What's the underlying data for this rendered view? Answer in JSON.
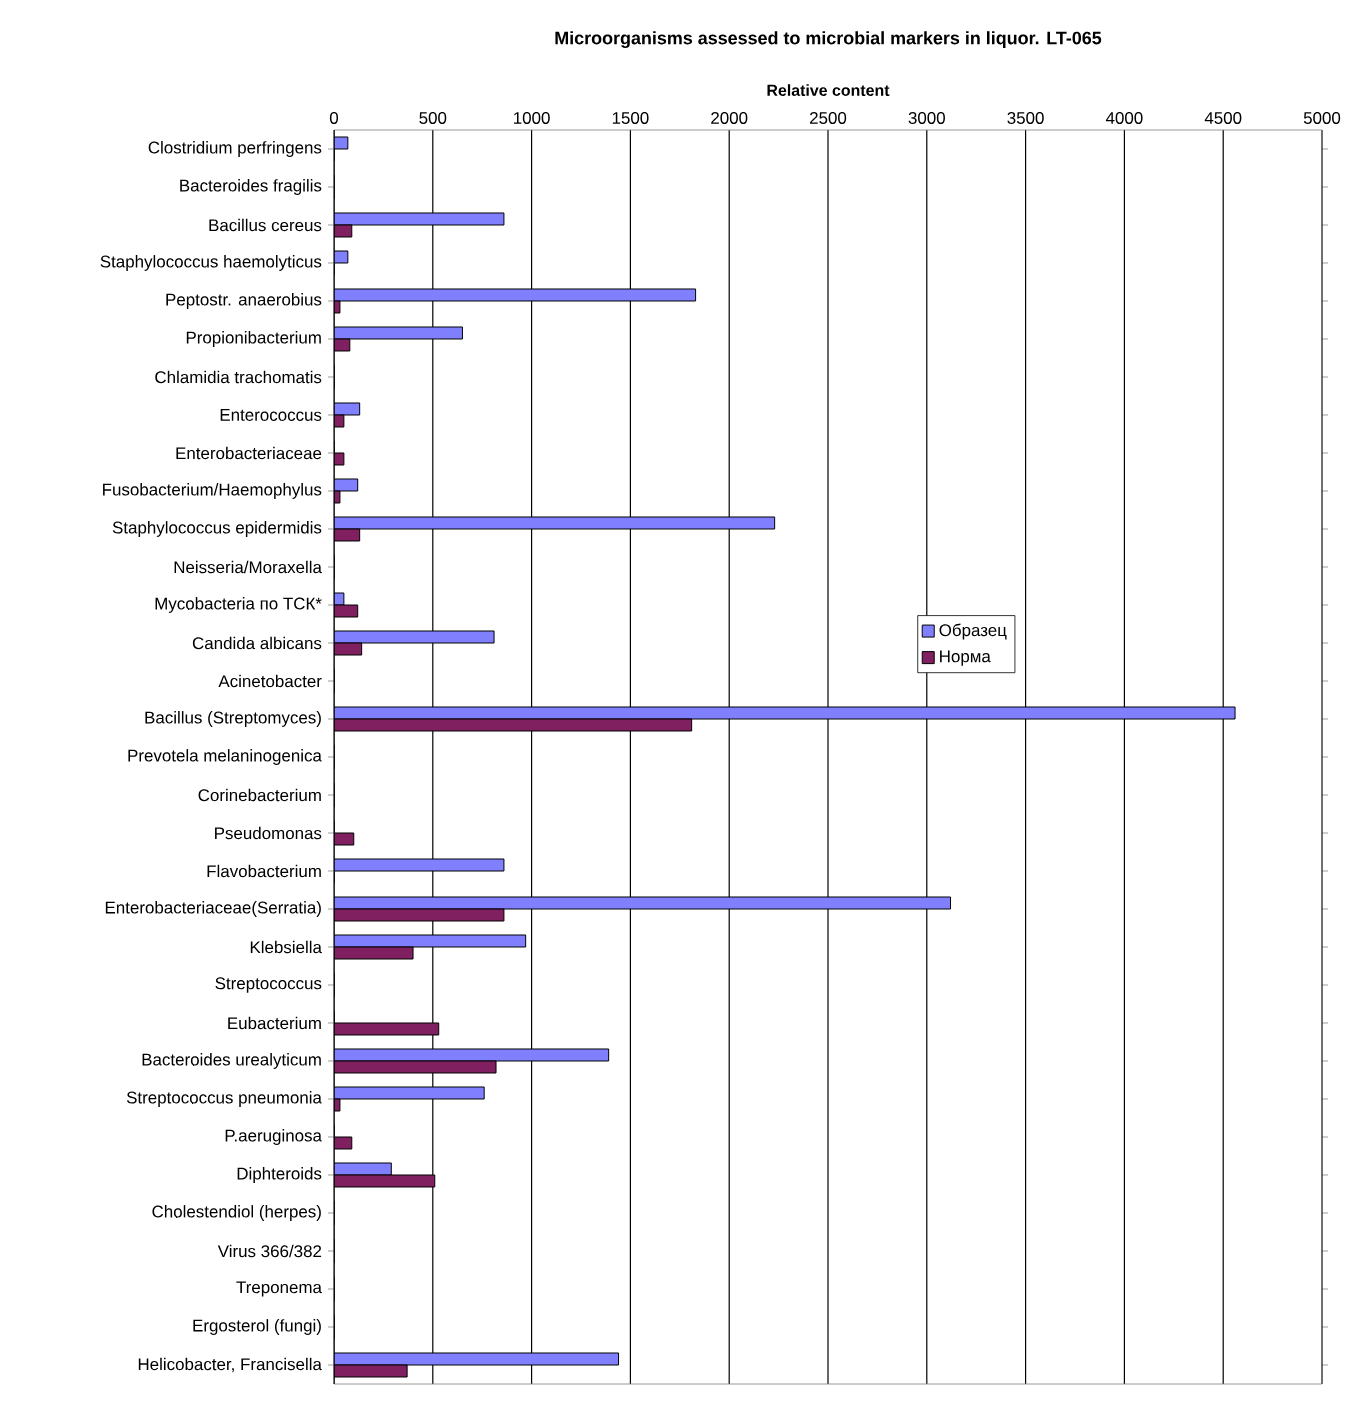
{
  "chart_data": {
    "type": "bar",
    "orientation": "horizontal",
    "title": "Microorganisms assessed to microbial markers in liquor. LT-065",
    "xlabel": "Relative content",
    "categories": [
      "Clostridium perfringens",
      "Bacteroides fragilis",
      "Bacillus cereus",
      "Staphylococcus haemolyticus",
      "Peptostr. anaerobius",
      "Propionibacterium",
      "Chlamidia trachomatis",
      "Enterococcus",
      "Enterobacteriaceae",
      "Fusobacterium/Haemophylus",
      "Staphylococcus epidermidis",
      "Neisseria/Moraxella",
      "Mycobacteria по ТСК*",
      "Candida albicans",
      "Acinetobacter",
      "Bacillus (Streptomyces)",
      "Prevotela melaninogenica",
      "Corinebacterium",
      "Pseudomonas",
      "Flavobacterium",
      "Enterobacteriaceae(Serratia)",
      "Klebsiella",
      "Streptococcus",
      "Eubacterium",
      "Bacteroides urealyticum",
      "Streptococcus pneumonia",
      "P.aeruginosa",
      "Diphteroids",
      "Cholestendiol (herpes)",
      "Virus 366/382",
      "Treponema",
      "Ergosterol (fungi)",
      "Helicobacter, Francisella"
    ],
    "series": [
      {
        "name": "Образец",
        "color": "#8080ff",
        "values": [
          70,
          0,
          860,
          70,
          1830,
          650,
          0,
          130,
          0,
          120,
          2230,
          0,
          50,
          810,
          0,
          4560,
          0,
          0,
          0,
          860,
          3120,
          970,
          0,
          0,
          1390,
          760,
          0,
          290,
          0,
          0,
          0,
          0,
          1440
        ]
      },
      {
        "name": "Норма",
        "color": "#802060",
        "values": [
          0,
          0,
          90,
          0,
          30,
          80,
          0,
          50,
          50,
          30,
          130,
          0,
          120,
          140,
          0,
          1810,
          0,
          0,
          100,
          0,
          860,
          400,
          0,
          530,
          820,
          30,
          90,
          510,
          0,
          0,
          0,
          0,
          370
        ]
      }
    ],
    "xlim": [
      0,
      5000
    ],
    "xticks": [
      0,
      500,
      1000,
      1500,
      2000,
      2500,
      3000,
      3500,
      4000,
      4500,
      5000
    ],
    "grid": "x",
    "legend": "right"
  }
}
